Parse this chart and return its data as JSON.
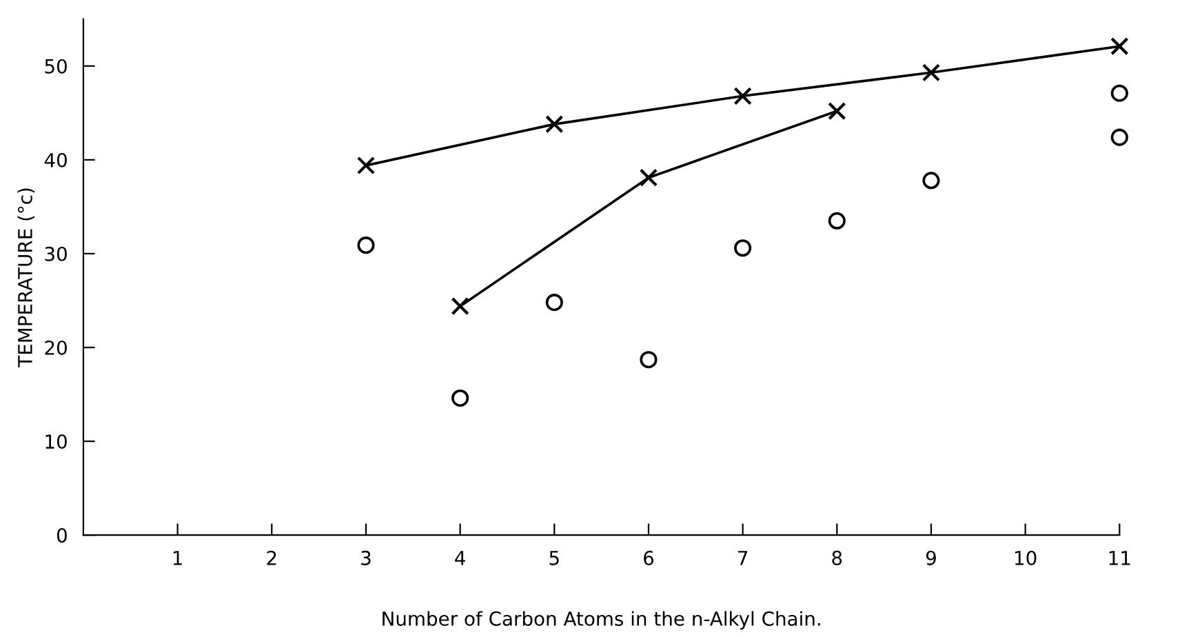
{
  "chart_data": {
    "type": "scatter",
    "xlabel": "Number of Carbon Atoms in the n-Alkyl Chain.",
    "ylabel": "TEMPERATURE (°c)",
    "xlim": [
      0,
      11
    ],
    "ylim": [
      0,
      55
    ],
    "xticks": [
      1,
      2,
      3,
      4,
      5,
      6,
      7,
      8,
      9,
      10,
      11
    ],
    "yticks": [
      0,
      10,
      20,
      30,
      40,
      50
    ],
    "grid": false,
    "series": [
      {
        "type": "line",
        "color": "#000000",
        "marker": "cross",
        "x": [
          3,
          5,
          7,
          9,
          11
        ],
        "values": [
          39.4,
          43.8,
          46.8,
          49.3,
          52.1
        ]
      },
      {
        "type": "line",
        "color": "#000000",
        "marker": "cross",
        "x": [
          4,
          6,
          8
        ],
        "values": [
          24.4,
          38.1,
          45.2
        ]
      },
      {
        "color": "#000000",
        "marker": "circle",
        "x": [
          3,
          4,
          5,
          6,
          7,
          8,
          9,
          11
        ],
        "values": [
          30.9,
          14.6,
          24.8,
          18.7,
          30.6,
          33.5,
          37.8,
          42.4
        ]
      },
      {
        "color": "#000000",
        "marker": "circle",
        "x": [
          11
        ],
        "values": [
          47.1
        ]
      }
    ]
  }
}
